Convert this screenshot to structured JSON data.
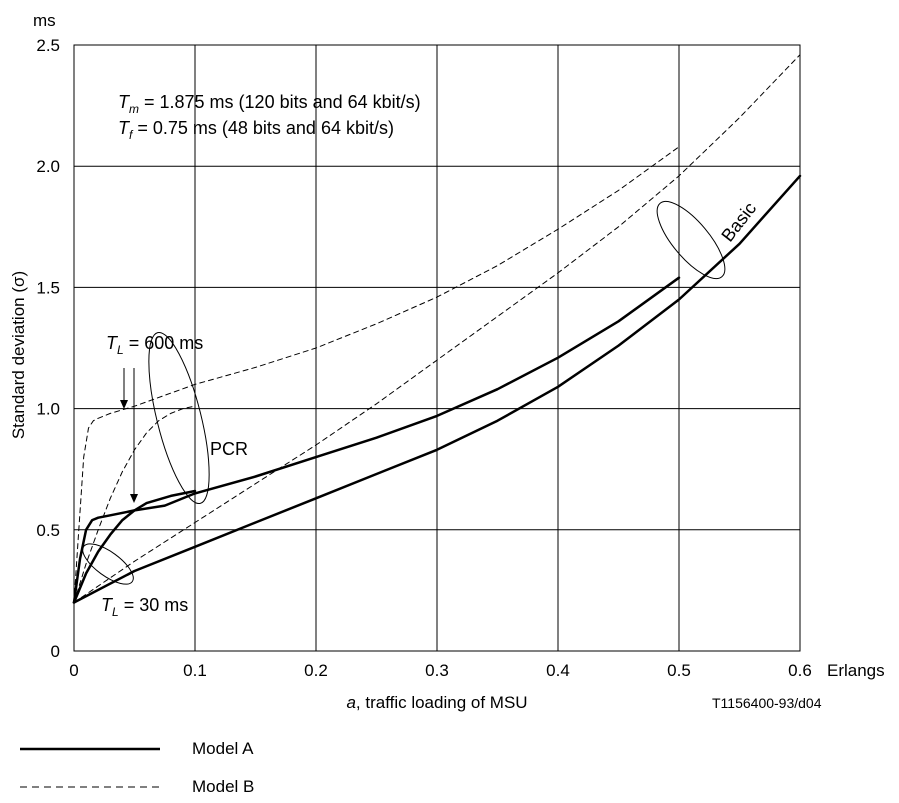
{
  "chart_data": {
    "type": "line",
    "title": "",
    "xlabel": {
      "italic": "a",
      "rest": ", traffic loading of MSU"
    },
    "xunit": "Erlangs",
    "ylabel": "Standard deviation (σ)",
    "yunit": "ms",
    "xlim": [
      0,
      0.6
    ],
    "ylim": [
      0,
      2.5
    ],
    "xticks": [
      0,
      0.1,
      0.2,
      0.3,
      0.4,
      0.5,
      0.6
    ],
    "xtick_labels": [
      "0",
      "0.1",
      "0.2",
      "0.3",
      "0.4",
      "0.5",
      "0.6"
    ],
    "yticks": [
      0,
      0.5,
      1.0,
      1.5,
      2.0,
      2.5
    ],
    "ytick_labels": [
      "0",
      "0.5",
      "1.0",
      "1.5",
      "2.0",
      "2.5"
    ],
    "grid": true,
    "series": [
      {
        "name": "Basic – Model A",
        "style": "solid",
        "x": [
          0,
          0.05,
          0.1,
          0.15,
          0.2,
          0.25,
          0.3,
          0.35,
          0.4,
          0.45,
          0.5,
          0.55,
          0.6
        ],
        "y": [
          0.2,
          0.33,
          0.43,
          0.53,
          0.63,
          0.73,
          0.83,
          0.95,
          1.09,
          1.26,
          1.45,
          1.68,
          1.96
        ]
      },
      {
        "name": "PCR T_L = 30 ms – Model A",
        "style": "solid",
        "x": [
          0,
          0.005,
          0.01,
          0.015,
          0.02,
          0.03,
          0.05,
          0.075,
          0.1,
          0.15,
          0.2,
          0.25,
          0.3,
          0.35,
          0.4,
          0.45,
          0.5
        ],
        "y": [
          0.2,
          0.38,
          0.5,
          0.54,
          0.55,
          0.56,
          0.58,
          0.6,
          0.65,
          0.72,
          0.8,
          0.88,
          0.97,
          1.08,
          1.21,
          1.36,
          1.54
        ]
      },
      {
        "name": "PCR T_L = 600 ms – Model A",
        "style": "solid",
        "x": [
          0,
          0.01,
          0.02,
          0.03,
          0.04,
          0.05,
          0.06,
          0.08,
          0.1
        ],
        "y": [
          0.2,
          0.32,
          0.41,
          0.48,
          0.54,
          0.58,
          0.61,
          0.64,
          0.66
        ]
      },
      {
        "name": "Basic – Model B",
        "style": "dashed",
        "x": [
          0,
          0.05,
          0.1,
          0.15,
          0.2,
          0.25,
          0.3,
          0.35,
          0.4,
          0.45,
          0.5,
          0.55,
          0.6
        ],
        "y": [
          0.2,
          0.37,
          0.53,
          0.69,
          0.85,
          1.02,
          1.2,
          1.38,
          1.56,
          1.75,
          1.96,
          2.2,
          2.46
        ]
      },
      {
        "name": "PCR T_L = 30 ms – Model B",
        "style": "dashed",
        "x": [
          0,
          0.004,
          0.008,
          0.012,
          0.016,
          0.02,
          0.03,
          0.05,
          0.1,
          0.15,
          0.2,
          0.25,
          0.3,
          0.35,
          0.4,
          0.45,
          0.5
        ],
        "y": [
          0.2,
          0.5,
          0.8,
          0.92,
          0.95,
          0.96,
          0.98,
          1.01,
          1.1,
          1.17,
          1.25,
          1.35,
          1.46,
          1.59,
          1.74,
          1.9,
          2.08
        ]
      },
      {
        "name": "PCR T_L = 600 ms – Model B",
        "style": "dashed",
        "x": [
          0,
          0.01,
          0.02,
          0.03,
          0.04,
          0.05,
          0.06,
          0.07,
          0.08,
          0.09,
          0.1
        ],
        "y": [
          0.2,
          0.36,
          0.5,
          0.63,
          0.74,
          0.83,
          0.9,
          0.95,
          0.98,
          1.0,
          1.01
        ]
      }
    ],
    "annotations": {
      "tm": {
        "T": "T",
        "sub": "m",
        "rest": " = 1.875 ms (120 bits and 64 kbit/s)"
      },
      "tf": {
        "T": "T",
        "sub": "f",
        "rest": "   = 0.75 ms (48 bits and 64 kbit/s)"
      },
      "tl600": {
        "T": "T",
        "sub": "L",
        "rest": " = 600 ms"
      },
      "tl30": {
        "T": "T",
        "sub": "L",
        "rest": " = 30 ms"
      },
      "pcr": "PCR",
      "basic": "Basic",
      "code": "T1156400-93/d04"
    },
    "legend": {
      "placement": "bottom-left",
      "entries": [
        {
          "label": "Model A",
          "style": "solid"
        },
        {
          "label": "Model B",
          "style": "dashed"
        }
      ]
    }
  }
}
